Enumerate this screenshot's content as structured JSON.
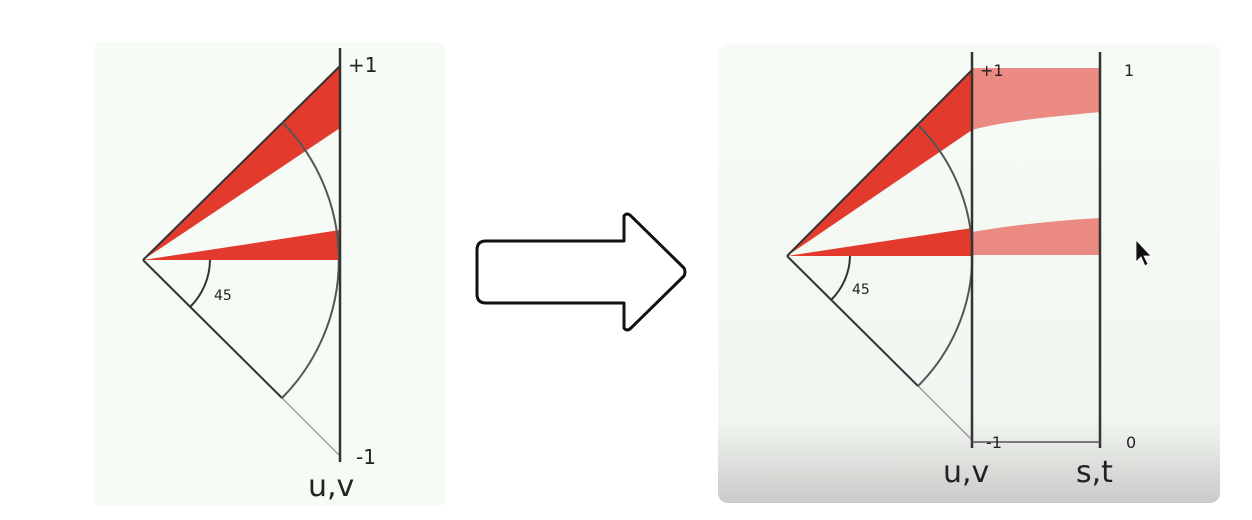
{
  "left_panel": {
    "label_top": "+1",
    "label_bottom": "-1",
    "angle_label": "45",
    "axis_label": "u,v"
  },
  "right_panel": {
    "label_top": "+1",
    "label_bottom": "-1",
    "angle_label": "45",
    "axis_label_uv": "u,v",
    "axis_label_st": "s,t",
    "label_one": "1",
    "label_zero": "0"
  },
  "colors": {
    "panel_bg": "#f6fbf5",
    "wedge_red": "#e23b2e",
    "band_pink": "#eb8a82",
    "line": "#333333",
    "arrow_fill": "#ffffff",
    "arrow_stroke": "#111111"
  },
  "icons": {
    "arrow": "right-arrow-icon",
    "cursor": "mouse-pointer-icon"
  }
}
